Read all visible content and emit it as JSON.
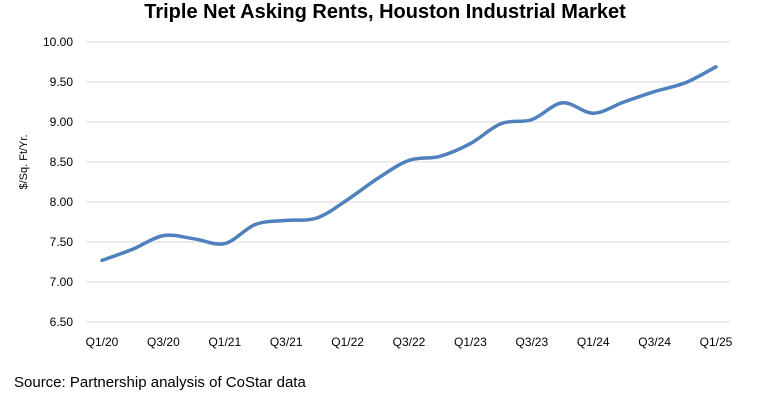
{
  "chart_data": {
    "type": "line",
    "title": "Triple Net Asking Rents, Houston Industrial Market",
    "ylabel": "$/Sq. Ft/Yr.",
    "xlabel": "",
    "ylim": [
      6.5,
      10.0
    ],
    "yticks": [
      "6.50",
      "7.00",
      "7.50",
      "8.00",
      "8.50",
      "9.00",
      "9.50",
      "10.00"
    ],
    "grid": "horizontal",
    "legend": "none",
    "line_color": "#4f81bd",
    "categories": [
      "Q1/20",
      "Q2/20",
      "Q3/20",
      "Q4/20",
      "Q1/21",
      "Q2/21",
      "Q3/21",
      "Q4/21",
      "Q1/22",
      "Q2/22",
      "Q3/22",
      "Q4/22",
      "Q1/23",
      "Q2/23",
      "Q3/23",
      "Q4/23",
      "Q1/24",
      "Q2/24",
      "Q3/24",
      "Q4/24",
      "Q1/25"
    ],
    "xtick_labels": [
      "Q1/20",
      "Q3/20",
      "Q1/21",
      "Q3/21",
      "Q1/22",
      "Q3/22",
      "Q1/23",
      "Q3/23",
      "Q1/24",
      "Q3/24",
      "Q1/25"
    ],
    "series": [
      {
        "values": [
          7.27,
          7.41,
          7.58,
          7.54,
          7.48,
          7.72,
          7.77,
          7.8,
          8.03,
          8.3,
          8.52,
          8.57,
          8.73,
          8.98,
          9.03,
          9.24,
          9.11,
          9.25,
          9.38,
          9.49,
          9.69
        ]
      }
    ]
  },
  "source": "Source: Partnership analysis of CoStar data"
}
